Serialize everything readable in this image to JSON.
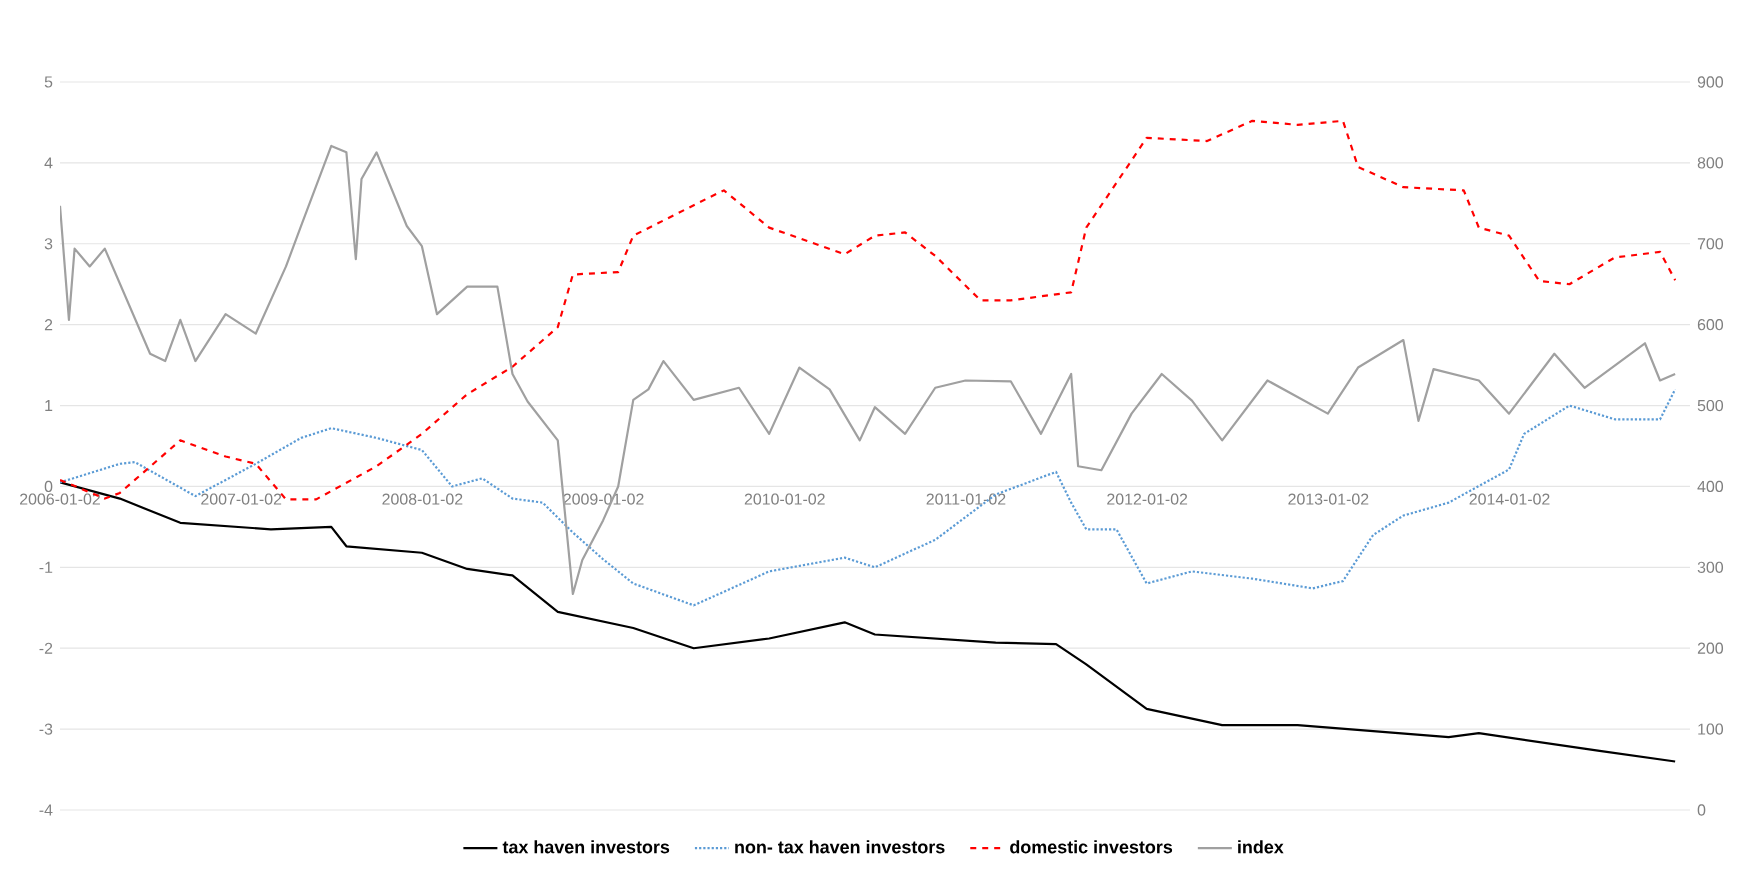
{
  "chart_data": {
    "type": "line",
    "xlim": [
      "2006-01-02",
      "2014-12-31"
    ],
    "xticks": [
      "2006-01-02",
      "2007-01-02",
      "2008-01-02",
      "2009-01-02",
      "2010-01-02",
      "2011-01-02",
      "2012-01-02",
      "2013-01-02",
      "2014-01-02"
    ],
    "ylim": [
      -4,
      5
    ],
    "yticks": [
      -4,
      -3,
      -2,
      -1,
      0,
      1,
      2,
      3,
      4,
      5
    ],
    "y2lim": [
      0,
      900
    ],
    "y2ticks": [
      0,
      100,
      200,
      300,
      400,
      500,
      600,
      700,
      800,
      900
    ],
    "grid": "y",
    "legend": "bottom",
    "marker": "none",
    "series": [
      {
        "name": "tax haven investors",
        "color": "#000000",
        "line_style": "solid",
        "x": [
          "2006-01-02",
          "2006-05",
          "2006-09",
          "2007-03",
          "2007-07",
          "2007-08",
          "2008-01",
          "2008-04",
          "2008-07",
          "2008-10",
          "2009-03",
          "2009-07",
          "2009-12",
          "2010-05",
          "2010-07",
          "2011-03",
          "2011-07",
          "2011-09",
          "2012-01",
          "2012-06",
          "2012-11",
          "2013-09",
          "2013-11",
          "2014-07",
          "2014-12"
        ],
        "values": [
          0.05,
          -0.15,
          -0.45,
          -0.53,
          -0.5,
          -0.74,
          -0.82,
          -1.02,
          -1.1,
          -1.55,
          -1.75,
          -2.0,
          -1.88,
          -1.68,
          -1.83,
          -1.93,
          -1.95,
          -2.2,
          -2.75,
          -2.95,
          -2.95,
          -3.1,
          -3.05,
          -3.27,
          -3.4
        ]
      },
      {
        "name": "non- tax haven investors",
        "color": "#5b9bd5",
        "line_style": "dotted",
        "x": [
          "2006-01-02",
          "2006-05",
          "2006-06",
          "2006-10",
          "2007-02",
          "2007-05",
          "2007-07",
          "2007-10",
          "2008-01",
          "2008-03",
          "2008-05",
          "2008-07",
          "2008-09",
          "2008-11",
          "2009-01",
          "2009-03",
          "2009-07",
          "2009-12",
          "2010-05",
          "2010-07",
          "2010-11",
          "2011-03",
          "2011-07",
          "2011-08",
          "2011-09",
          "2011-11",
          "2012-01",
          "2012-04",
          "2012-08",
          "2012-12",
          "2013-02",
          "2013-04",
          "2013-06",
          "2013-09",
          "2014-01",
          "2014-02",
          "2014-05",
          "2014-08",
          "2014-11",
          "2014-12"
        ],
        "values": [
          0.05,
          0.28,
          0.3,
          -0.12,
          0.28,
          0.6,
          0.72,
          0.6,
          0.45,
          0.0,
          0.1,
          -0.15,
          -0.2,
          -0.57,
          -0.9,
          -1.2,
          -1.47,
          -1.05,
          -0.88,
          -1.0,
          -0.66,
          -0.1,
          0.18,
          -0.2,
          -0.53,
          -0.53,
          -1.2,
          -1.05,
          -1.14,
          -1.26,
          -1.17,
          -0.6,
          -0.36,
          -0.2,
          0.21,
          0.65,
          1.0,
          0.83,
          0.83,
          1.2
        ]
      },
      {
        "name": "domestic investors",
        "color": "#ff0000",
        "line_style": "dashed",
        "x": [
          "2006-01-02",
          "2006-04",
          "2006-05",
          "2006-09",
          "2006-12",
          "2007-02",
          "2007-04",
          "2007-06",
          "2007-10",
          "2008-01",
          "2008-04",
          "2008-07",
          "2008-10",
          "2008-11",
          "2009-02",
          "2009-03",
          "2009-08",
          "2009-09",
          "2009-12",
          "2010-05",
          "2010-07",
          "2010-09",
          "2010-11",
          "2011-02",
          "2011-04",
          "2011-08",
          "2011-09",
          "2011-12",
          "2012-01",
          "2012-05",
          "2012-08",
          "2012-11",
          "2013-02",
          "2013-03",
          "2013-06",
          "2013-10",
          "2013-11",
          "2014-01",
          "2014-03",
          "2014-05",
          "2014-08",
          "2014-11",
          "2014-12"
        ],
        "values": [
          0.08,
          -0.15,
          -0.08,
          0.57,
          0.37,
          0.28,
          -0.16,
          -0.16,
          0.25,
          0.65,
          1.14,
          1.48,
          1.97,
          2.62,
          2.65,
          3.1,
          3.57,
          3.66,
          3.2,
          2.87,
          3.1,
          3.14,
          2.85,
          2.3,
          2.3,
          2.4,
          3.2,
          4.03,
          4.31,
          4.27,
          4.52,
          4.47,
          4.52,
          3.95,
          3.7,
          3.66,
          3.2,
          3.1,
          2.54,
          2.5,
          2.83,
          2.9,
          2.55
        ]
      },
      {
        "name": "index",
        "color": "#a0a0a0",
        "line_style": "solid",
        "axis": "y2",
        "x": [
          "2006-01-02",
          "2006-01-20",
          "2006-02",
          "2006-03",
          "2006-04",
          "2006-07",
          "2006-08",
          "2006-09",
          "2006-10",
          "2006-12",
          "2007-02",
          "2007-04",
          "2007-05",
          "2007-07",
          "2007-08",
          "2007-08-20",
          "2007-09",
          "2007-10",
          "2007-12",
          "2008-01",
          "2008-02",
          "2008-04",
          "2008-06",
          "2008-07",
          "2008-08",
          "2008-10",
          "2008-11",
          "2008-11-20",
          "2009-01",
          "2009-02",
          "2009-03",
          "2009-04",
          "2009-05",
          "2009-07",
          "2009-10",
          "2009-12",
          "2010-02",
          "2010-04",
          "2010-06",
          "2010-07",
          "2010-09",
          "2010-11",
          "2011-01",
          "2011-04",
          "2011-06",
          "2011-08",
          "2011-08-15",
          "2011-10",
          "2011-12",
          "2012-02",
          "2012-04",
          "2012-06",
          "2012-09",
          "2013-01",
          "2013-03",
          "2013-06",
          "2013-07",
          "2013-08",
          "2013-11",
          "2014-01",
          "2014-04",
          "2014-06",
          "2014-10",
          "2014-11",
          "2014-12"
        ],
        "values": [
          747,
          606,
          694,
          672,
          694,
          564,
          555,
          606,
          555,
          613,
          589,
          672,
          722,
          821,
          813,
          681,
          780,
          813,
          722,
          697,
          613,
          647,
          647,
          539,
          505,
          457,
          267,
          309,
          358,
          400,
          507,
          520,
          555,
          507,
          522,
          465,
          547,
          520,
          457,
          498,
          465,
          522,
          531,
          530,
          465,
          539,
          425,
          420,
          490,
          539,
          506,
          457,
          531,
          490,
          547,
          581,
          481,
          545,
          531,
          490,
          564,
          522,
          577,
          531,
          539
        ]
      }
    ]
  }
}
